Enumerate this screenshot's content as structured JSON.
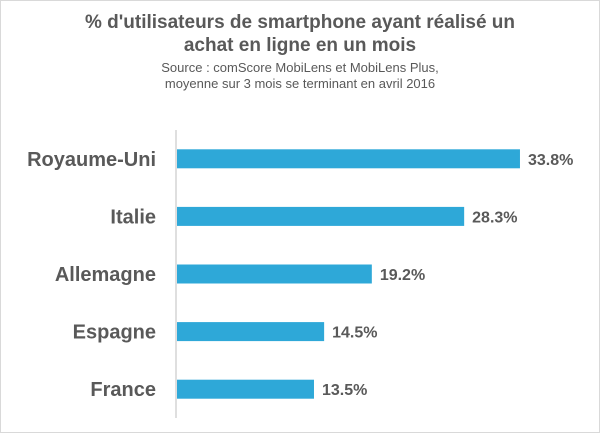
{
  "title_lines": [
    "% d'utilisateurs de smartphone ayant réalisé un",
    "achat en ligne en un mois"
  ],
  "source_lines": [
    "Source : comScore MobiLens et MobiLens Plus,",
    "moyenne sur 3 mois se terminant en avril 2016"
  ],
  "colors": {
    "bar": "#2ea8d8",
    "text": "#595959",
    "axis": "#bfbfbf"
  },
  "chart_data": {
    "type": "bar",
    "orientation": "horizontal",
    "title": "% d'utilisateurs de smartphone ayant réalisé un achat en ligne en un mois",
    "subtitle": "Source : comScore MobiLens et MobiLens Plus, moyenne sur 3 mois se terminant en avril 2016",
    "categories": [
      "Royaume-Uni",
      "Italie",
      "Allemagne",
      "Espagne",
      "France"
    ],
    "values": [
      33.8,
      28.3,
      19.2,
      14.5,
      13.5
    ],
    "value_labels": [
      "33.8%",
      "28.3%",
      "19.2%",
      "14.5%",
      "13.5%"
    ],
    "xlabel": "",
    "ylabel": "",
    "xlim": [
      0,
      34
    ],
    "grid": false,
    "legend": "none"
  }
}
